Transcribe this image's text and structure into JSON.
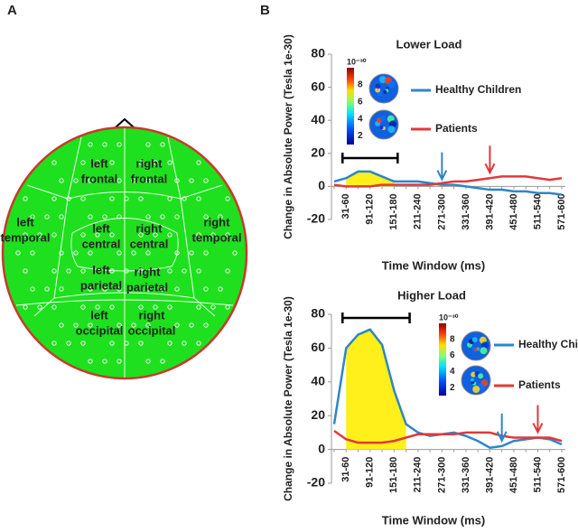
{
  "panel_a": {
    "label": "A",
    "regions": [
      {
        "lines": [
          "left",
          "frontal"
        ]
      },
      {
        "lines": [
          "right",
          "frontal"
        ]
      },
      {
        "lines": [
          "left",
          "temporal"
        ]
      },
      {
        "lines": [
          "left",
          "central"
        ]
      },
      {
        "lines": [
          "right",
          "central"
        ]
      },
      {
        "lines": [
          "right",
          "temporal"
        ]
      },
      {
        "lines": [
          "left",
          "parietal"
        ]
      },
      {
        "lines": [
          "right",
          "parietal"
        ]
      },
      {
        "lines": [
          "left",
          "occipital"
        ]
      },
      {
        "lines": [
          "right",
          "occipital"
        ]
      }
    ]
  },
  "panel_b": {
    "label": "B"
  },
  "chart_data": [
    {
      "type": "line",
      "title": "Lower Load",
      "ylabel": "Change in Absolute Power (Tesla 1e-30)",
      "xlabel": "Time Window (ms)",
      "categories": [
        null,
        "31-60",
        null,
        "91-120",
        null,
        "151-180",
        null,
        "211-240",
        null,
        "271-300",
        null,
        "331-360",
        null,
        "391-420",
        null,
        "451-480",
        null,
        "511-540",
        null,
        "571-600"
      ],
      "ylim": [
        -20,
        80
      ],
      "yticks": [
        -20,
        0,
        20,
        40,
        60,
        80
      ],
      "series": [
        {
          "name": "Healthy Children",
          "color": "#2e86c8",
          "values": [
            3,
            5,
            9,
            9,
            6,
            3,
            3,
            3,
            2,
            1,
            1,
            0,
            -1,
            -2,
            -2,
            -3,
            -3,
            -4,
            -4,
            -5
          ]
        },
        {
          "name": "Patients",
          "color": "#e0393b",
          "values": [
            1,
            0,
            0,
            0,
            1,
            1,
            1,
            1,
            1,
            2,
            3,
            3,
            4,
            5,
            6,
            6,
            6,
            5,
            4,
            5
          ]
        }
      ],
      "colorbar": {
        "unit": "10⁻³⁰",
        "clim": [
          1,
          10
        ],
        "ticks": [
          2,
          4,
          6,
          8
        ]
      }
    },
    {
      "type": "line",
      "title": "Higher Load",
      "ylabel": "Change in Absolute Power (Tesla 1e-30)",
      "xlabel": "Time Window (ms)",
      "categories": [
        null,
        "31-60",
        null,
        "91-120",
        null,
        "151-180",
        null,
        "211-240",
        null,
        "271-300",
        null,
        "331-360",
        null,
        "391-420",
        null,
        "451-480",
        null,
        "511-540",
        null,
        "571-600"
      ],
      "ylim": [
        -20,
        80
      ],
      "yticks": [
        -20,
        0,
        20,
        40,
        60,
        80
      ],
      "series": [
        {
          "name": "Healthy Children",
          "color": "#2e86c8",
          "values": [
            15,
            60,
            68,
            71,
            62,
            35,
            15,
            10,
            8,
            9,
            10,
            8,
            5,
            1,
            2,
            5,
            6,
            7,
            6,
            3
          ]
        },
        {
          "name": "Patients",
          "color": "#e0393b",
          "values": [
            11,
            6,
            4,
            4,
            4,
            5,
            7,
            9,
            9,
            9,
            9,
            10,
            10,
            10,
            8,
            7,
            7,
            7,
            7,
            5
          ]
        }
      ],
      "colorbar": {
        "unit": "10⁻³⁰",
        "clim": [
          1,
          10
        ],
        "ticks": [
          2,
          4,
          6,
          8
        ]
      }
    }
  ]
}
